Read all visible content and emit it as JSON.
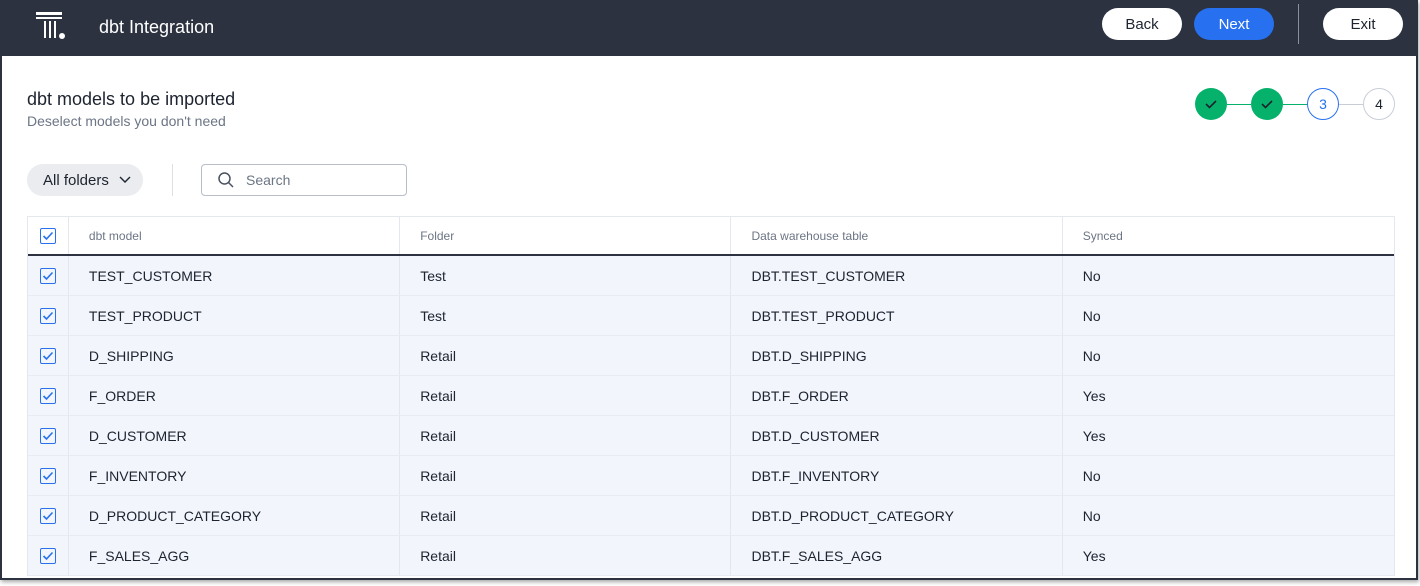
{
  "header": {
    "title": "dbt Integration",
    "buttons": [
      "Back",
      "Next",
      "Exit"
    ]
  },
  "page": {
    "title": "dbt models to be imported",
    "subtitle": "Deselect models you don't need"
  },
  "steps": [
    "3",
    "4"
  ],
  "toolbar": {
    "folder_filter": "All folders",
    "search_placeholder": "Search"
  },
  "table": {
    "columns": [
      "dbt model",
      "Folder",
      "Data warehouse table",
      "Synced"
    ],
    "rows": [
      [
        "TEST_CUSTOMER",
        "Test",
        "DBT.TEST_CUSTOMER",
        "No"
      ],
      [
        "TEST_PRODUCT",
        "Test",
        "DBT.TEST_PRODUCT",
        "No"
      ],
      [
        "D_SHIPPING",
        "Retail",
        "DBT.D_SHIPPING",
        "No"
      ],
      [
        "F_ORDER",
        "Retail",
        "DBT.F_ORDER",
        "Yes"
      ],
      [
        "D_CUSTOMER",
        "Retail",
        "DBT.D_CUSTOMER",
        "Yes"
      ],
      [
        "F_INVENTORY",
        "Retail",
        "DBT.F_INVENTORY",
        "No"
      ],
      [
        "D_PRODUCT_CATEGORY",
        "Retail",
        "DBT.D_PRODUCT_CATEGORY",
        "No"
      ],
      [
        "F_SALES_AGG",
        "Retail",
        "DBT.F_SALES_AGG",
        "Yes"
      ]
    ]
  }
}
